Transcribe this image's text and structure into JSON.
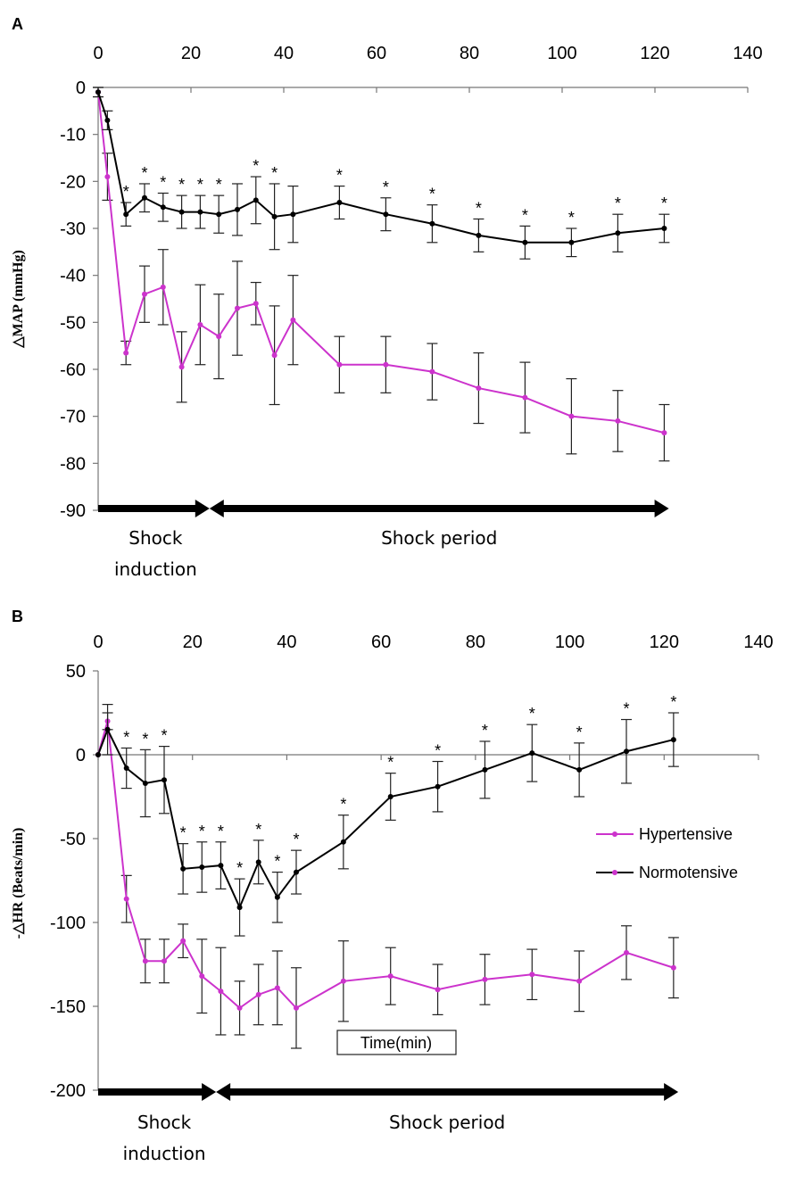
{
  "chart_data": [
    {
      "panel_label": "A",
      "type": "line",
      "ylabel": "△MAP (mmHg)",
      "xlim": [
        0,
        140
      ],
      "ylim": [
        -90,
        0
      ],
      "x_ticks": [
        "0",
        "20",
        "40",
        "60",
        "80",
        "100",
        "120",
        "140"
      ],
      "y_ticks": [
        "0",
        "-10",
        "-20",
        "-30",
        "-40",
        "-50",
        "-60",
        "-70",
        "-80",
        "-90"
      ],
      "phases": [
        {
          "label": "Shock\ninduction",
          "x_from": 0,
          "x_to": 24
        },
        {
          "label": "Shock period",
          "x_from": 24,
          "x_to": 123
        }
      ],
      "series": [
        {
          "name": "Hypertensive",
          "color": "#cc33cc",
          "x": [
            0,
            2,
            6,
            10,
            14,
            18,
            22,
            26,
            30,
            34,
            38,
            42,
            52,
            62,
            72,
            82,
            92,
            102,
            112,
            122
          ],
          "y": [
            -1,
            -19,
            -56.5,
            -44,
            -42.5,
            -59.5,
            -50.5,
            -53,
            -47,
            -46,
            -57,
            -49.5,
            -59,
            -59,
            -60.5,
            -64,
            -66,
            -70,
            -71,
            -73.5
          ],
          "err": [
            1,
            5,
            2.5,
            6,
            8,
            7.5,
            8.5,
            9,
            10,
            4.5,
            10.5,
            9.5,
            6,
            6,
            6,
            7.5,
            7.5,
            8,
            6.5,
            6
          ]
        },
        {
          "name": "Normotensive",
          "color": "#000000",
          "x": [
            0,
            2,
            6,
            10,
            14,
            18,
            22,
            26,
            30,
            34,
            38,
            42,
            52,
            62,
            72,
            82,
            92,
            102,
            112,
            122
          ],
          "y": [
            -1,
            -7,
            -27,
            -23.5,
            -25.5,
            -26.5,
            -26.5,
            -27,
            -26,
            -24,
            -27.5,
            -27,
            -24.5,
            -27,
            -29,
            -31.5,
            -33,
            -33,
            -31,
            -30
          ],
          "err": [
            1,
            2,
            2.5,
            3,
            3,
            3.5,
            3.5,
            4,
            5.5,
            5,
            7,
            6,
            3.5,
            3.5,
            4,
            3.5,
            3.5,
            3,
            4,
            3
          ],
          "significant": [
            false,
            false,
            true,
            true,
            true,
            true,
            true,
            true,
            false,
            true,
            true,
            false,
            true,
            true,
            true,
            true,
            true,
            true,
            true,
            true
          ]
        }
      ]
    },
    {
      "panel_label": "B",
      "type": "line",
      "ylabel": "-△HR (Beats/min)",
      "xlabel": "Time(min)",
      "xlim": [
        0,
        140
      ],
      "ylim": [
        -200,
        50
      ],
      "x_ticks": [
        "0",
        "20",
        "40",
        "60",
        "80",
        "100",
        "120",
        "140"
      ],
      "y_ticks": [
        "50",
        "0",
        "-50",
        "-100",
        "-150",
        "-200"
      ],
      "phases": [
        {
          "label": "Shock\ninduction",
          "x_from": 0,
          "x_to": 25
        },
        {
          "label": "Shock period",
          "x_from": 25,
          "x_to": 123
        }
      ],
      "series": [
        {
          "name": "Hypertensive",
          "color": "#cc33cc",
          "x": [
            0,
            2,
            6,
            10,
            14,
            18,
            22,
            26,
            30,
            34,
            38,
            42,
            52,
            62,
            72,
            82,
            92,
            102,
            112,
            122
          ],
          "y": [
            0,
            20,
            -86,
            -123,
            -123,
            -111,
            -132,
            -141,
            -151,
            -143,
            -139,
            -151,
            -135,
            -132,
            -140,
            -134,
            -131,
            -135,
            -118,
            -127
          ],
          "err": [
            0,
            5,
            14,
            13,
            13,
            10,
            22,
            26,
            16,
            18,
            22,
            24,
            24,
            17,
            15,
            15,
            15,
            18,
            16,
            18
          ]
        },
        {
          "name": "Normotensive",
          "color": "#000000",
          "x": [
            0,
            2,
            6,
            10,
            14,
            18,
            22,
            26,
            30,
            34,
            38,
            42,
            52,
            62,
            72,
            82,
            92,
            102,
            112,
            122
          ],
          "y": [
            0,
            15,
            -8,
            -17,
            -15,
            -68,
            -67,
            -66,
            -91,
            -64,
            -85,
            -70,
            -52,
            -25,
            -19,
            -9,
            1,
            -9,
            2,
            9
          ],
          "err": [
            0,
            15,
            12,
            20,
            20,
            15,
            15,
            14,
            17,
            13,
            15,
            13,
            16,
            14,
            15,
            17,
            17,
            16,
            19,
            16
          ],
          "significant": [
            false,
            false,
            true,
            true,
            true,
            true,
            true,
            true,
            true,
            true,
            true,
            true,
            true,
            true,
            true,
            true,
            true,
            true,
            true,
            true
          ]
        }
      ]
    }
  ],
  "legend": {
    "hypertensive_label": "Hypertensive",
    "normotensive_label": "Normotensive"
  }
}
